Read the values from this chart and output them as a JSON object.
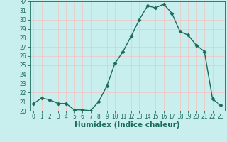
{
  "x": [
    0,
    1,
    2,
    3,
    4,
    5,
    6,
    7,
    8,
    9,
    10,
    11,
    12,
    13,
    14,
    15,
    16,
    17,
    18,
    19,
    20,
    21,
    22,
    23
  ],
  "y": [
    20.8,
    21.4,
    21.2,
    20.8,
    20.8,
    20.1,
    20.1,
    20.0,
    21.0,
    22.7,
    25.2,
    26.5,
    28.2,
    30.0,
    31.5,
    31.3,
    31.7,
    30.7,
    28.7,
    28.3,
    27.2,
    26.5,
    21.3,
    20.6
  ],
  "line_color": "#1a6b5a",
  "marker": "D",
  "markersize": 2.5,
  "bg_color": "#c8eeee",
  "grid_major_color": "#f0c8c8",
  "xlabel": "Humidex (Indice chaleur)",
  "xlim": [
    -0.5,
    23.5
  ],
  "ylim": [
    20,
    32
  ],
  "yticks": [
    20,
    21,
    22,
    23,
    24,
    25,
    26,
    27,
    28,
    29,
    30,
    31,
    32
  ],
  "xticks": [
    0,
    1,
    2,
    3,
    4,
    5,
    6,
    7,
    8,
    9,
    10,
    11,
    12,
    13,
    14,
    15,
    16,
    17,
    18,
    19,
    20,
    21,
    22,
    23
  ],
  "tick_labelsize": 5.5,
  "xlabel_fontsize": 7.5,
  "xlabel_fontweight": "bold",
  "linewidth": 1.0
}
